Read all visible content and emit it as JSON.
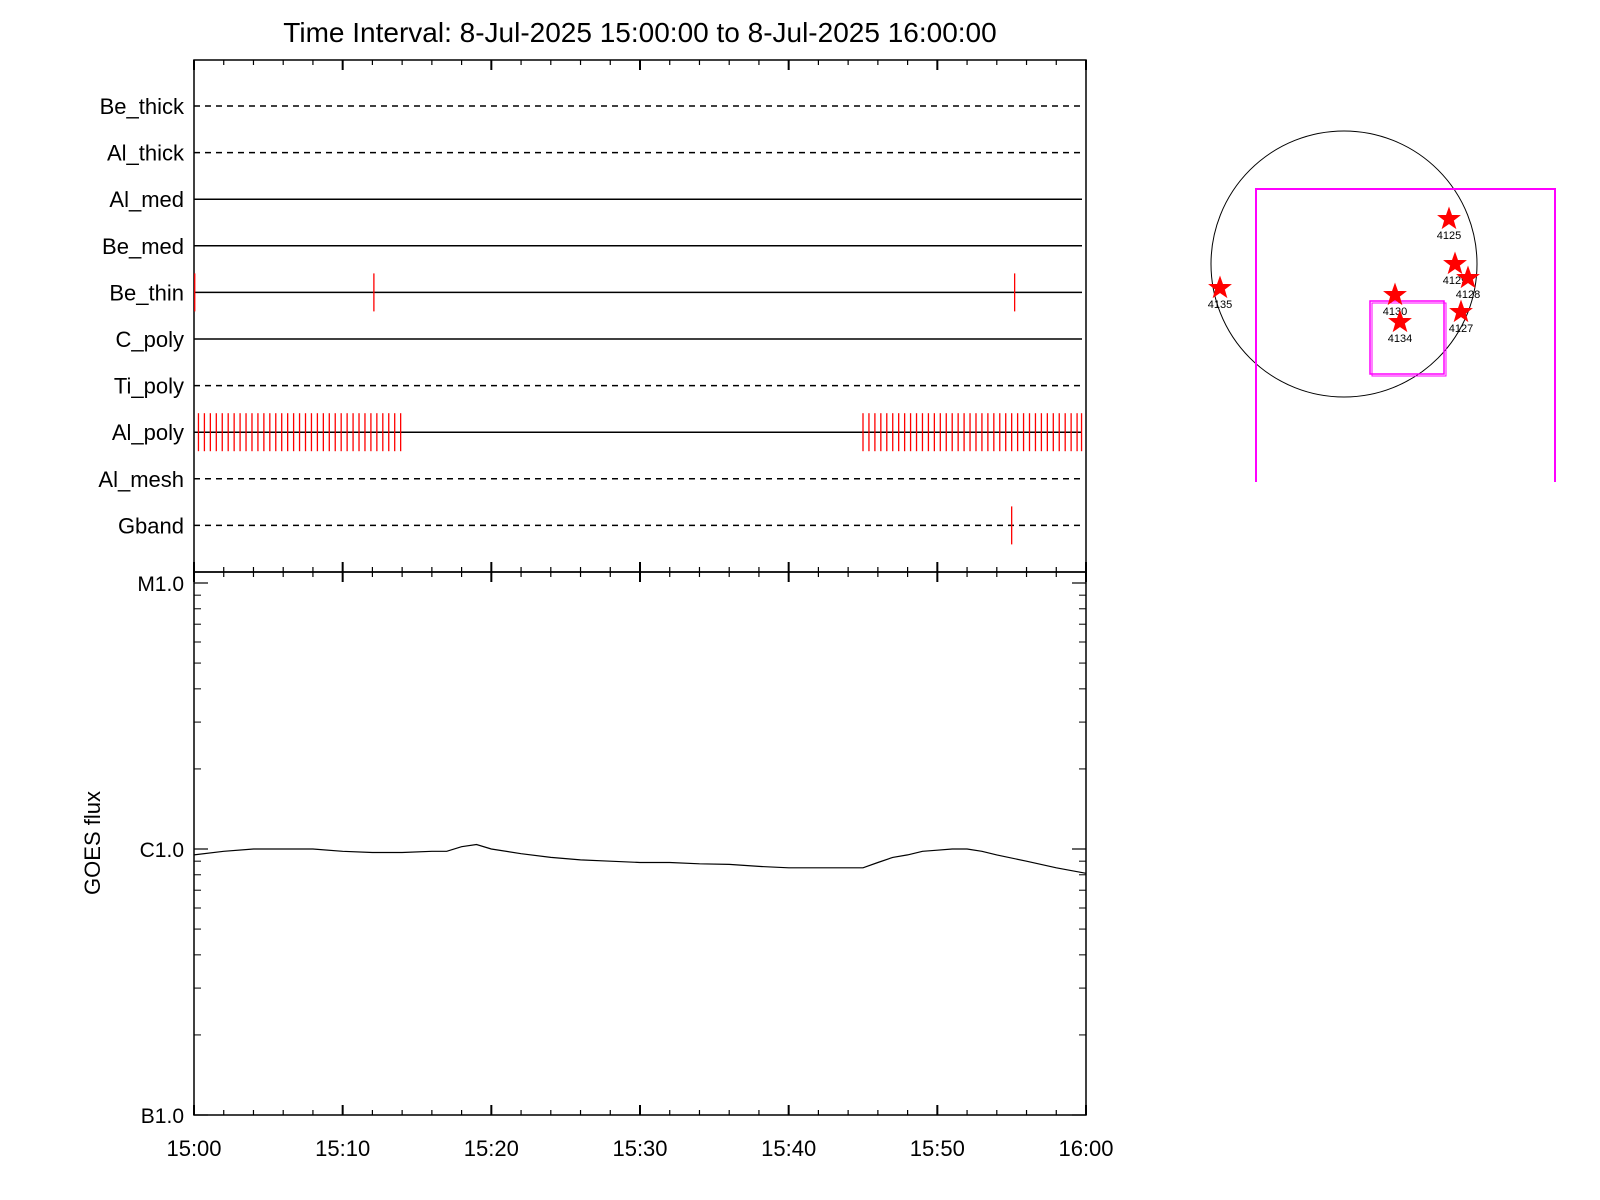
{
  "title": "Time Interval:  8-Jul-2025 15:00:00 to  8-Jul-2025 16:00:00",
  "colors": {
    "marker": "#ff0000",
    "fov": "#ff00ff",
    "axis": "#000000"
  },
  "chart_data": [
    {
      "type": "timeline",
      "x_unit": "minutes after 15:00",
      "xlim": [
        0,
        60
      ],
      "channels": [
        {
          "label": "Be_thick",
          "style": "dashed",
          "events": []
        },
        {
          "label": "Al_thick",
          "style": "dashed",
          "events": []
        },
        {
          "label": "Al_med",
          "style": "solid",
          "events": []
        },
        {
          "label": "Be_med",
          "style": "solid",
          "events": []
        },
        {
          "label": "Be_thin",
          "style": "solid",
          "events": [
            0.05,
            12.1,
            55.2
          ]
        },
        {
          "label": "C_poly",
          "style": "solid",
          "events": []
        },
        {
          "label": "Ti_poly",
          "style": "dashed",
          "events": []
        },
        {
          "label": "Al_poly",
          "style": "solid",
          "events": [
            0.3,
            0.7,
            1.1,
            1.5,
            1.9,
            2.3,
            2.7,
            3.1,
            3.5,
            3.9,
            4.3,
            4.7,
            5.1,
            5.5,
            5.9,
            6.3,
            6.7,
            7.1,
            7.5,
            7.9,
            8.3,
            8.7,
            9.1,
            9.5,
            9.9,
            10.3,
            10.7,
            11.1,
            11.5,
            11.9,
            12.3,
            12.7,
            13.1,
            13.5,
            13.9,
            45.0,
            45.4,
            45.8,
            46.2,
            46.6,
            47.0,
            47.4,
            47.8,
            48.2,
            48.6,
            49.0,
            49.4,
            49.8,
            50.2,
            50.6,
            51.0,
            51.4,
            51.8,
            52.2,
            52.6,
            53.0,
            53.4,
            53.8,
            54.2,
            54.6,
            55.0,
            55.4,
            55.8,
            56.2,
            56.6,
            57.0,
            57.4,
            57.8,
            58.2,
            58.6,
            59.0,
            59.4,
            59.7
          ]
        },
        {
          "label": "Al_mesh",
          "style": "dashed",
          "events": []
        },
        {
          "label": "Gband",
          "style": "dashed",
          "events": [
            55.0
          ]
        }
      ]
    },
    {
      "type": "line",
      "ylabel": "GOES flux",
      "yscale": "log",
      "ylim": [
        1e-07,
        1e-05
      ],
      "yticks": [
        {
          "value": 1e-07,
          "label": "B1.0"
        },
        {
          "value": 1e-06,
          "label": "C1.0"
        },
        {
          "value": 1e-05,
          "label": "M1.0"
        }
      ],
      "xlim": [
        0,
        60
      ],
      "xticks": [
        "15:00",
        "15:10",
        "15:20",
        "15:30",
        "15:40",
        "15:50",
        "16:00"
      ],
      "series": [
        {
          "x": [
            0,
            2,
            4,
            6,
            8,
            10,
            12,
            14,
            16,
            17,
            18,
            19,
            20,
            22,
            24,
            26,
            28,
            30,
            32,
            34,
            36,
            38,
            40,
            42,
            44,
            45,
            46,
            47,
            48,
            49,
            50,
            51,
            52,
            53,
            54,
            56,
            58,
            60
          ],
          "y": [
            9.5e-07,
            9.8e-07,
            1e-06,
            1e-06,
            1e-06,
            9.8e-07,
            9.7e-07,
            9.7e-07,
            9.8e-07,
            9.8e-07,
            1.02e-06,
            1.04e-06,
            1e-06,
            9.6e-07,
            9.3e-07,
            9.1e-07,
            9e-07,
            8.9e-07,
            8.9e-07,
            8.8e-07,
            8.75e-07,
            8.6e-07,
            8.5e-07,
            8.5e-07,
            8.5e-07,
            8.5e-07,
            8.9e-07,
            9.3e-07,
            9.5e-07,
            9.8e-07,
            9.9e-07,
            1e-06,
            1e-06,
            9.8e-07,
            9.5e-07,
            9e-07,
            8.5e-07,
            8.1e-07
          ]
        }
      ]
    },
    {
      "type": "scatter",
      "note": "solar disk locator",
      "points": [
        {
          "label": "4125"
        },
        {
          "label": "4129"
        },
        {
          "label": "4128"
        },
        {
          "label": "4135"
        },
        {
          "label": "4130"
        },
        {
          "label": "4127"
        },
        {
          "label": "4134"
        }
      ]
    }
  ]
}
